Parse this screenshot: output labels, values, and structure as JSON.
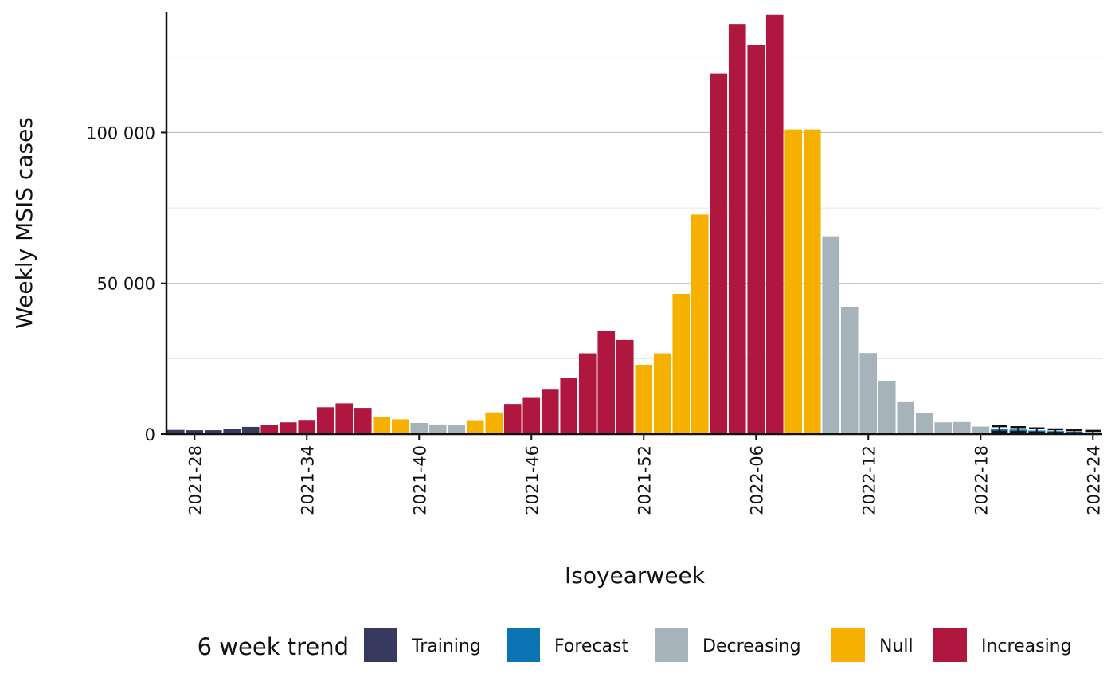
{
  "colors": {
    "Training": "#38395e",
    "Forecast": "#0a74b4",
    "Decreasing": "#a7b3ba",
    "Null": "#f6b100",
    "Increasing": "#b0173f"
  },
  "chart_data": {
    "type": "bar",
    "xlabel": "Isoyearweek",
    "ylabel": "Weekly MSIS cases",
    "ylim": [
      0,
      140000
    ],
    "y_ticks": [
      0,
      50000,
      100000
    ],
    "y_tick_labels": [
      "0",
      "50 000",
      "100 000"
    ],
    "x_tick_labels": [
      "2021-28",
      "2021-34",
      "2021-40",
      "2021-46",
      "2021-52",
      "2022-06",
      "2022-12",
      "2022-18",
      "2022-24"
    ],
    "grid": "horizontal",
    "legend": {
      "title": "6 week trend",
      "placement": "bottom",
      "entries": [
        "Training",
        "Forecast",
        "Decreasing",
        "Null",
        "Increasing"
      ]
    },
    "categories": [
      "2021-27",
      "2021-28",
      "2021-29",
      "2021-30",
      "2021-31",
      "2021-32",
      "2021-33",
      "2021-34",
      "2021-35",
      "2021-36",
      "2021-37",
      "2021-38",
      "2021-39",
      "2021-40",
      "2021-41",
      "2021-42",
      "2021-43",
      "2021-44",
      "2021-45",
      "2021-46",
      "2021-47",
      "2021-48",
      "2021-49",
      "2021-50",
      "2021-51",
      "2021-52",
      "2022-01",
      "2022-02",
      "2022-03",
      "2022-04",
      "2022-05",
      "2022-06",
      "2022-07",
      "2022-08",
      "2022-09",
      "2022-10",
      "2022-11",
      "2022-12",
      "2022-13",
      "2022-14",
      "2022-15",
      "2022-16",
      "2022-17",
      "2022-18",
      "2022-19",
      "2022-20",
      "2022-21",
      "2022-22",
      "2022-23",
      "2022-24"
    ],
    "values": [
      1400,
      1300,
      1300,
      1600,
      2400,
      3100,
      3900,
      4700,
      8900,
      10200,
      8700,
      5800,
      4900,
      3700,
      3200,
      3000,
      4600,
      7200,
      10000,
      12000,
      15000,
      18500,
      26800,
      34300,
      31200,
      23000,
      26800,
      46500,
      72800,
      119500,
      136000,
      129000,
      139000,
      101000,
      101000,
      65600,
      42100,
      26900,
      17700,
      10600,
      7000,
      3900,
      4000,
      2500,
      1700,
      1500,
      1200,
      1000,
      800,
      600
    ],
    "trend": [
      "Training",
      "Training",
      "Training",
      "Training",
      "Training",
      "Increasing",
      "Increasing",
      "Increasing",
      "Increasing",
      "Increasing",
      "Increasing",
      "Null",
      "Null",
      "Decreasing",
      "Decreasing",
      "Decreasing",
      "Null",
      "Null",
      "Increasing",
      "Increasing",
      "Increasing",
      "Increasing",
      "Increasing",
      "Increasing",
      "Increasing",
      "Null",
      "Null",
      "Null",
      "Null",
      "Increasing",
      "Increasing",
      "Increasing",
      "Increasing",
      "Null",
      "Null",
      "Decreasing",
      "Decreasing",
      "Decreasing",
      "Decreasing",
      "Decreasing",
      "Decreasing",
      "Decreasing",
      "Decreasing",
      "Decreasing",
      "Forecast",
      "Forecast",
      "Forecast",
      "Forecast",
      "Forecast",
      "Forecast"
    ],
    "forecast_errorbars": [
      {
        "x": "2022-19",
        "low": 800,
        "high": 2600
      },
      {
        "x": "2022-20",
        "low": 700,
        "high": 2300
      },
      {
        "x": "2022-21",
        "low": 500,
        "high": 1900
      },
      {
        "x": "2022-22",
        "low": 400,
        "high": 1600
      },
      {
        "x": "2022-23",
        "low": 300,
        "high": 1300
      },
      {
        "x": "2022-24",
        "low": 200,
        "high": 1100
      }
    ]
  }
}
